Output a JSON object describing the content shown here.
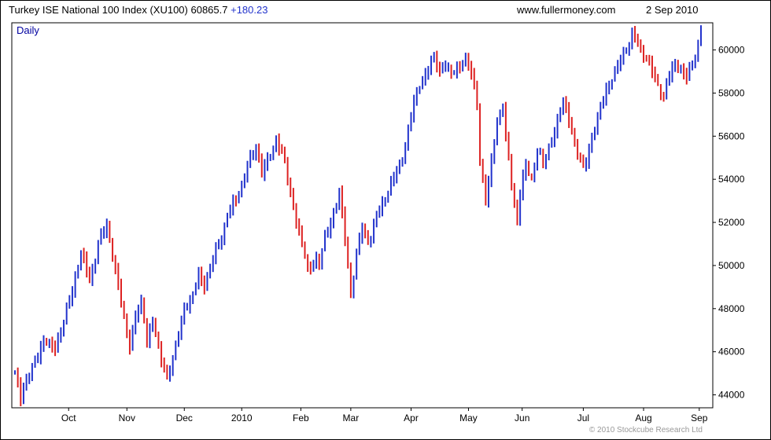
{
  "header": {
    "title": "Turkey ISE National 100 Index (XU100)",
    "last": "60865.7",
    "change": "+180.23",
    "website": "www.fullermoney.com",
    "date": "2 Sep 2010"
  },
  "chart": {
    "frequency_label": "Daily",
    "copyright": "© 2010 Stockcube Research Ltd"
  },
  "chart_data": {
    "type": "ohlc-bar",
    "title": "Turkey ISE National 100 Index (XU100)",
    "frequency": "Daily",
    "last_price": 60865.7,
    "change": 180.23,
    "x_tick_labels": [
      "Oct",
      "Nov",
      "Dec",
      "2010",
      "Feb",
      "Mar",
      "Apr",
      "May",
      "Jun",
      "Jul",
      "Aug",
      "Sep"
    ],
    "x_tick_positions": [
      18.7,
      39,
      59,
      79,
      99.6,
      117,
      138,
      158,
      176.7,
      198,
      219,
      238.4
    ],
    "y_ticks": [
      44000,
      46000,
      48000,
      50000,
      52000,
      54000,
      56000,
      58000,
      60000
    ],
    "ylim": [
      43400,
      61260
    ],
    "n_bars": 240,
    "grid": false,
    "legend": false,
    "up_color": "#2233cc",
    "down_color": "#dd2222",
    "keypoints": [
      [
        0,
        45100
      ],
      [
        2,
        43950
      ],
      [
        4,
        44600
      ],
      [
        6,
        45300
      ],
      [
        8,
        45900
      ],
      [
        10,
        46500
      ],
      [
        12,
        46300
      ],
      [
        14,
        46200
      ],
      [
        16,
        47000
      ],
      [
        18,
        47900
      ],
      [
        20,
        48900
      ],
      [
        23,
        50600
      ],
      [
        26,
        49300
      ],
      [
        29,
        51000
      ],
      [
        32,
        51900
      ],
      [
        35,
        49800
      ],
      [
        37,
        48200
      ],
      [
        40,
        46300
      ],
      [
        42,
        47600
      ],
      [
        44,
        48300
      ],
      [
        46,
        46600
      ],
      [
        48,
        47400
      ],
      [
        51,
        45600
      ],
      [
        53,
        44850
      ],
      [
        55,
        45600
      ],
      [
        57,
        46900
      ],
      [
        59,
        48000
      ],
      [
        62,
        48600
      ],
      [
        64,
        49600
      ],
      [
        66,
        49100
      ],
      [
        69,
        50300
      ],
      [
        72,
        51400
      ],
      [
        74,
        52300
      ],
      [
        77,
        53100
      ],
      [
        79,
        53800
      ],
      [
        82,
        54900
      ],
      [
        84,
        55600
      ],
      [
        86,
        54300
      ],
      [
        89,
        55100
      ],
      [
        91,
        55900
      ],
      [
        94,
        54800
      ],
      [
        96,
        53300
      ],
      [
        98,
        52100
      ],
      [
        100,
        51000
      ],
      [
        102,
        49800
      ],
      [
        105,
        50300
      ],
      [
        106,
        50100
      ],
      [
        108,
        51300
      ],
      [
        111,
        52400
      ],
      [
        113,
        53400
      ],
      [
        115,
        51200
      ],
      [
        117,
        48750
      ],
      [
        119,
        50500
      ],
      [
        121,
        51800
      ],
      [
        123,
        51100
      ],
      [
        126,
        52200
      ],
      [
        128,
        52900
      ],
      [
        131,
        53800
      ],
      [
        134,
        54600
      ],
      [
        137,
        56200
      ],
      [
        139,
        57600
      ],
      [
        141,
        58400
      ],
      [
        144,
        59100
      ],
      [
        146,
        59700
      ],
      [
        148,
        59000
      ],
      [
        150,
        59400
      ],
      [
        152,
        58800
      ],
      [
        155,
        59300
      ],
      [
        157,
        59600
      ],
      [
        159,
        58900
      ],
      [
        161,
        57500
      ],
      [
        162,
        55000
      ],
      [
        164,
        52900
      ],
      [
        166,
        54800
      ],
      [
        168,
        56800
      ],
      [
        170,
        57400
      ],
      [
        171,
        55800
      ],
      [
        173,
        53900
      ],
      [
        175,
        52000
      ],
      [
        176,
        53400
      ],
      [
        178,
        54600
      ],
      [
        180,
        54100
      ],
      [
        182,
        55300
      ],
      [
        184,
        54700
      ],
      [
        187,
        55900
      ],
      [
        189,
        56600
      ],
      [
        191,
        57700
      ],
      [
        193,
        56800
      ],
      [
        195,
        55600
      ],
      [
        198,
        54500
      ],
      [
        200,
        55400
      ],
      [
        202,
        56400
      ],
      [
        204,
        57300
      ],
      [
        206,
        58200
      ],
      [
        209,
        58900
      ],
      [
        211,
        59600
      ],
      [
        213,
        60100
      ],
      [
        215,
        60650
      ],
      [
        217,
        60300
      ],
      [
        220,
        59600
      ],
      [
        222,
        59000
      ],
      [
        224,
        58300
      ],
      [
        226,
        57900
      ],
      [
        228,
        58800
      ],
      [
        230,
        59400
      ],
      [
        232,
        59100
      ],
      [
        234,
        58700
      ],
      [
        236,
        59400
      ],
      [
        238,
        60200
      ],
      [
        239,
        60865.7
      ]
    ]
  }
}
